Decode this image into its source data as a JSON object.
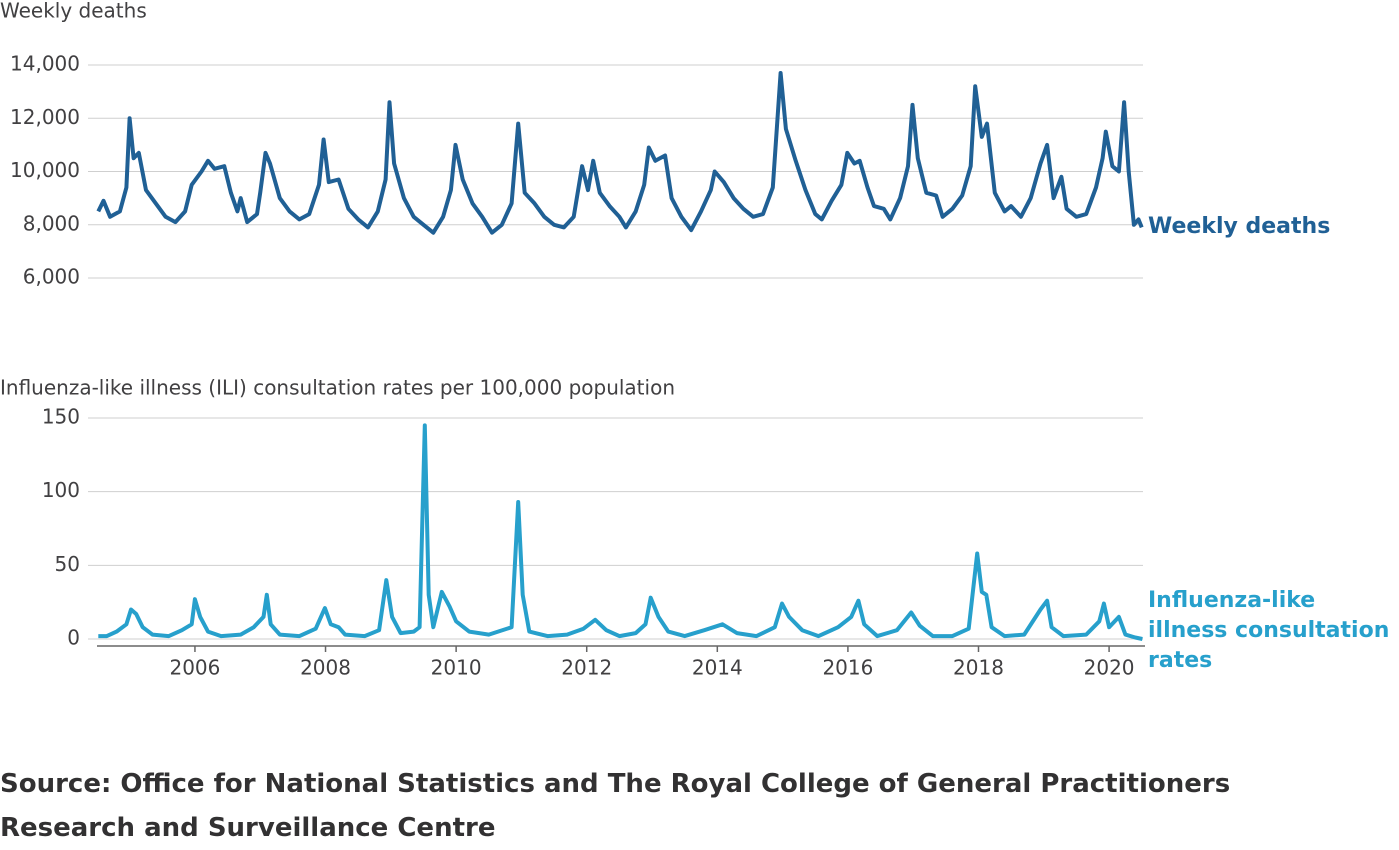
{
  "chart_data": [
    {
      "type": "line",
      "y_label": "Weekly deaths",
      "x": [
        2004.52,
        2004.6,
        2004.7,
        2004.85,
        2004.95,
        2005.0,
        2005.06,
        2005.14,
        2005.25,
        2005.4,
        2005.55,
        2005.7,
        2005.85,
        2005.95,
        2006.1,
        2006.2,
        2006.3,
        2006.45,
        2006.55,
        2006.65,
        2006.7,
        2006.8,
        2006.95,
        2007.0,
        2007.08,
        2007.15,
        2007.3,
        2007.45,
        2007.6,
        2007.75,
        2007.9,
        2007.97,
        2008.05,
        2008.2,
        2008.35,
        2008.5,
        2008.65,
        2008.8,
        2008.92,
        2008.98,
        2009.05,
        2009.2,
        2009.35,
        2009.5,
        2009.65,
        2009.8,
        2009.92,
        2009.99,
        2010.1,
        2010.25,
        2010.4,
        2010.55,
        2010.7,
        2010.85,
        2010.95,
        2011.05,
        2011.2,
        2011.35,
        2011.5,
        2011.65,
        2011.8,
        2011.93,
        2012.02,
        2012.1,
        2012.2,
        2012.35,
        2012.5,
        2012.6,
        2012.75,
        2012.88,
        2012.95,
        2013.05,
        2013.2,
        2013.3,
        2013.45,
        2013.6,
        2013.75,
        2013.9,
        2013.96,
        2014.1,
        2014.25,
        2014.4,
        2014.55,
        2014.7,
        2014.85,
        2014.97,
        2015.05,
        2015.2,
        2015.35,
        2015.5,
        2015.6,
        2015.75,
        2015.9,
        2015.99,
        2016.1,
        2016.18,
        2016.3,
        2016.4,
        2016.55,
        2016.65,
        2016.8,
        2016.92,
        2016.99,
        2017.07,
        2017.2,
        2017.35,
        2017.45,
        2017.6,
        2017.75,
        2017.88,
        2017.95,
        2018.05,
        2018.13,
        2018.25,
        2018.4,
        2018.5,
        2018.65,
        2018.8,
        2018.95,
        2019.05,
        2019.15,
        2019.27,
        2019.35,
        2019.5,
        2019.65,
        2019.8,
        2019.9,
        2019.95,
        2020.05,
        2020.15,
        2020.23,
        2020.3,
        2020.38,
        2020.45,
        2020.5
      ],
      "series": [
        {
          "name": "Weekly deaths",
          "color": "#206095",
          "values": [
            8500,
            8900,
            8300,
            8500,
            9400,
            12000,
            10500,
            10700,
            9300,
            8800,
            8300,
            8100,
            8500,
            9500,
            10000,
            10400,
            10100,
            10200,
            9200,
            8500,
            9000,
            8100,
            8400,
            9200,
            10700,
            10300,
            9000,
            8500,
            8200,
            8400,
            9500,
            11200,
            9600,
            9700,
            8600,
            8200,
            7900,
            8500,
            9700,
            12600,
            10300,
            9000,
            8300,
            8000,
            7700,
            8300,
            9300,
            11000,
            9700,
            8800,
            8300,
            7700,
            8000,
            8800,
            11800,
            9200,
            8800,
            8300,
            8000,
            7900,
            8300,
            10200,
            9300,
            10400,
            9200,
            8700,
            8300,
            7900,
            8500,
            9500,
            10900,
            10400,
            10600,
            9000,
            8300,
            7800,
            8500,
            9300,
            10000,
            9600,
            9000,
            8600,
            8300,
            8400,
            9400,
            13700,
            11600,
            10400,
            9300,
            8400,
            8200,
            8900,
            9500,
            10700,
            10300,
            10400,
            9400,
            8700,
            8600,
            8200,
            9000,
            10200,
            12500,
            10500,
            9200,
            9100,
            8300,
            8600,
            9100,
            10200,
            13200,
            11300,
            11800,
            9200,
            8500,
            8700,
            8300,
            9000,
            10300,
            11000,
            9000,
            9800,
            8600,
            8300,
            8400,
            9400,
            10500,
            11500,
            10200,
            10000,
            12600,
            10000,
            8000,
            8200,
            7900
          ]
        }
      ],
      "xlim": [
        2004.5,
        2020.55
      ],
      "ylim": [
        6000,
        14000
      ],
      "yticks": [
        {
          "value": 6000,
          "label": "6,000"
        },
        {
          "value": 8000,
          "label": "8,000"
        },
        {
          "value": 10000,
          "label": "10,000"
        },
        {
          "value": 12000,
          "label": "12,000"
        },
        {
          "value": 14000,
          "label": "14,000"
        }
      ],
      "grid": true
    },
    {
      "type": "line",
      "y_label": "Influenza-like illness (ILI) consultation rates per 100,000 population",
      "x": [
        2004.52,
        2004.65,
        2004.8,
        2004.95,
        2005.02,
        2005.1,
        2005.2,
        2005.35,
        2005.6,
        2005.8,
        2005.95,
        2006.0,
        2006.08,
        2006.2,
        2006.4,
        2006.7,
        2006.9,
        2007.05,
        2007.1,
        2007.16,
        2007.3,
        2007.6,
        2007.85,
        2007.99,
        2008.08,
        2008.2,
        2008.3,
        2008.6,
        2008.82,
        2008.93,
        2009.02,
        2009.15,
        2009.35,
        2009.44,
        2009.52,
        2009.58,
        2009.65,
        2009.78,
        2009.9,
        2010.0,
        2010.2,
        2010.5,
        2010.85,
        2010.95,
        2011.02,
        2011.12,
        2011.4,
        2011.7,
        2011.95,
        2012.13,
        2012.3,
        2012.5,
        2012.75,
        2012.9,
        2012.98,
        2013.1,
        2013.25,
        2013.5,
        2013.8,
        2014.08,
        2014.3,
        2014.6,
        2014.88,
        2014.99,
        2015.1,
        2015.3,
        2015.55,
        2015.85,
        2016.05,
        2016.16,
        2016.25,
        2016.45,
        2016.75,
        2016.97,
        2017.1,
        2017.3,
        2017.6,
        2017.85,
        2017.98,
        2018.05,
        2018.12,
        2018.2,
        2018.4,
        2018.7,
        2018.95,
        2019.05,
        2019.12,
        2019.3,
        2019.65,
        2019.85,
        2019.92,
        2020.0,
        2020.15,
        2020.25,
        2020.4,
        2020.51
      ],
      "series": [
        {
          "name": "Influenza-like illness consultation rates",
          "color": "#27a0cc",
          "values": [
            2,
            2,
            5,
            10,
            20,
            17,
            8,
            3,
            2,
            6,
            10,
            27,
            15,
            5,
            2,
            3,
            8,
            15,
            30,
            10,
            3,
            2,
            7,
            21,
            10,
            8,
            3,
            2,
            6,
            40,
            15,
            4,
            5,
            8,
            145,
            30,
            8,
            32,
            22,
            12,
            5,
            3,
            8,
            93,
            30,
            5,
            2,
            3,
            7,
            13,
            6,
            2,
            4,
            10,
            28,
            15,
            5,
            2,
            6,
            10,
            4,
            2,
            8,
            24,
            15,
            6,
            2,
            8,
            15,
            26,
            10,
            2,
            6,
            18,
            9,
            2,
            2,
            7,
            58,
            32,
            30,
            8,
            2,
            3,
            20,
            26,
            8,
            2,
            3,
            12,
            24,
            8,
            15,
            3,
            1,
            0
          ]
        }
      ],
      "xlim": [
        2004.5,
        2020.55
      ],
      "ylim": [
        0,
        150
      ],
      "yticks": [
        0,
        50,
        100,
        150
      ],
      "xticks": [
        2006,
        2008,
        2010,
        2012,
        2014,
        2016,
        2018,
        2020
      ],
      "grid": true
    }
  ],
  "source": "Source: Office for National Statistics and The Royal College of General Practitioners Research and Surveillance Centre"
}
